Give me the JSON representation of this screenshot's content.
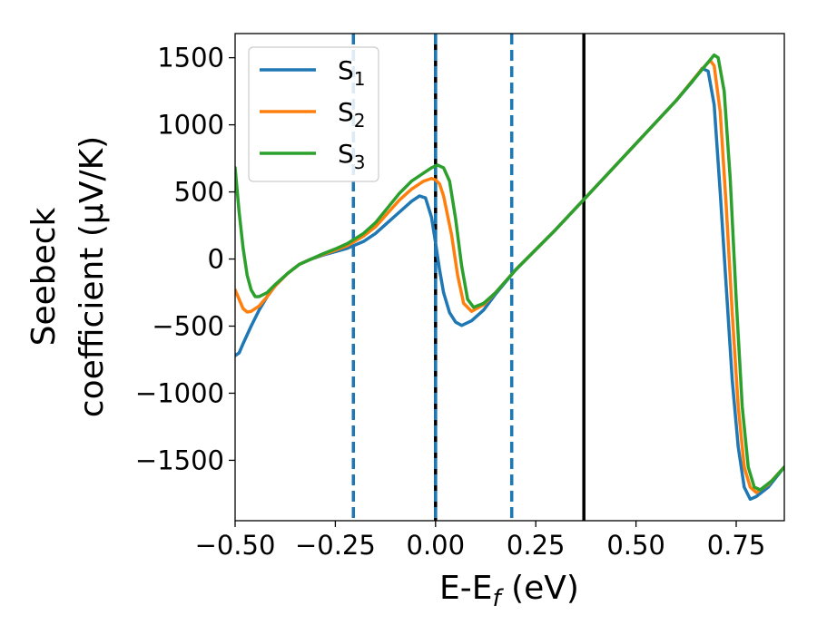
{
  "chart_data": {
    "type": "line",
    "title": "",
    "xlabel": {
      "main": "E-E",
      "sub": "f",
      "tail": " (eV)"
    },
    "ylabel": {
      "line1": "Seebeck",
      "line2": "coefficient  (μV/K)"
    },
    "xlim": [
      -0.5,
      0.87
    ],
    "ylim": [
      -1950,
      1680
    ],
    "x_ticks": [
      {
        "value": -0.5,
        "label": "−0.50"
      },
      {
        "value": -0.25,
        "label": "−0.25"
      },
      {
        "value": 0.0,
        "label": "0.00"
      },
      {
        "value": 0.25,
        "label": "0.25"
      },
      {
        "value": 0.5,
        "label": "0.50"
      },
      {
        "value": 0.75,
        "label": "0.75"
      }
    ],
    "y_ticks": [
      {
        "value": 1500,
        "label": "1500"
      },
      {
        "value": 1000,
        "label": "1000"
      },
      {
        "value": 500,
        "label": "500"
      },
      {
        "value": 0,
        "label": "0"
      },
      {
        "value": -500,
        "label": "−500"
      },
      {
        "value": -1000,
        "label": "−1000"
      },
      {
        "value": -1500,
        "label": "−1500"
      }
    ],
    "grid": false,
    "legend_position": "top-left",
    "series": [
      {
        "name": "S",
        "sub": "1",
        "color": "#1f77b4",
        "points": [
          [
            -0.5,
            -720
          ],
          [
            -0.49,
            -700
          ],
          [
            -0.48,
            -630
          ],
          [
            -0.46,
            -500
          ],
          [
            -0.44,
            -380
          ],
          [
            -0.42,
            -280
          ],
          [
            -0.4,
            -200
          ],
          [
            -0.37,
            -110
          ],
          [
            -0.34,
            -40
          ],
          [
            -0.31,
            0
          ],
          [
            -0.28,
            30
          ],
          [
            -0.25,
            55
          ],
          [
            -0.22,
            80
          ],
          [
            -0.18,
            130
          ],
          [
            -0.15,
            190
          ],
          [
            -0.12,
            270
          ],
          [
            -0.09,
            350
          ],
          [
            -0.06,
            430
          ],
          [
            -0.04,
            470
          ],
          [
            -0.025,
            455
          ],
          [
            -0.01,
            310
          ],
          [
            0.0,
            120
          ],
          [
            0.01,
            -80
          ],
          [
            0.02,
            -250
          ],
          [
            0.035,
            -400
          ],
          [
            0.05,
            -470
          ],
          [
            0.065,
            -495
          ],
          [
            0.09,
            -460
          ],
          [
            0.12,
            -380
          ],
          [
            0.15,
            -260
          ],
          [
            0.2,
            -80
          ],
          [
            0.3,
            220
          ],
          [
            0.4,
            540
          ],
          [
            0.5,
            860
          ],
          [
            0.6,
            1180
          ],
          [
            0.64,
            1320
          ],
          [
            0.665,
            1420
          ],
          [
            0.68,
            1400
          ],
          [
            0.695,
            1150
          ],
          [
            0.71,
            500
          ],
          [
            0.725,
            -200
          ],
          [
            0.74,
            -900
          ],
          [
            0.755,
            -1400
          ],
          [
            0.77,
            -1700
          ],
          [
            0.785,
            -1790
          ],
          [
            0.8,
            -1770
          ],
          [
            0.83,
            -1700
          ],
          [
            0.87,
            -1550
          ]
        ]
      },
      {
        "name": "S",
        "sub": "2",
        "color": "#ff7f0e",
        "points": [
          [
            -0.5,
            -230
          ],
          [
            -0.49,
            -300
          ],
          [
            -0.48,
            -370
          ],
          [
            -0.47,
            -395
          ],
          [
            -0.46,
            -390
          ],
          [
            -0.44,
            -350
          ],
          [
            -0.42,
            -280
          ],
          [
            -0.4,
            -200
          ],
          [
            -0.37,
            -110
          ],
          [
            -0.34,
            -40
          ],
          [
            -0.31,
            0
          ],
          [
            -0.28,
            35
          ],
          [
            -0.25,
            65
          ],
          [
            -0.22,
            100
          ],
          [
            -0.18,
            170
          ],
          [
            -0.15,
            240
          ],
          [
            -0.12,
            340
          ],
          [
            -0.09,
            440
          ],
          [
            -0.06,
            520
          ],
          [
            -0.03,
            580
          ],
          [
            -0.01,
            600
          ],
          [
            0.0,
            590
          ],
          [
            0.01,
            560
          ],
          [
            0.02,
            470
          ],
          [
            0.04,
            180
          ],
          [
            0.055,
            -120
          ],
          [
            0.07,
            -330
          ],
          [
            0.09,
            -390
          ],
          [
            0.12,
            -340
          ],
          [
            0.15,
            -250
          ],
          [
            0.2,
            -80
          ],
          [
            0.3,
            220
          ],
          [
            0.4,
            540
          ],
          [
            0.5,
            860
          ],
          [
            0.6,
            1180
          ],
          [
            0.66,
            1400
          ],
          [
            0.685,
            1480
          ],
          [
            0.695,
            1440
          ],
          [
            0.71,
            1100
          ],
          [
            0.725,
            400
          ],
          [
            0.74,
            -400
          ],
          [
            0.755,
            -1100
          ],
          [
            0.77,
            -1550
          ],
          [
            0.785,
            -1700
          ],
          [
            0.8,
            -1740
          ],
          [
            0.83,
            -1680
          ],
          [
            0.87,
            -1550
          ]
        ]
      },
      {
        "name": "S",
        "sub": "3",
        "color": "#2ca02c",
        "points": [
          [
            -0.5,
            680
          ],
          [
            -0.49,
            350
          ],
          [
            -0.48,
            80
          ],
          [
            -0.47,
            -120
          ],
          [
            -0.46,
            -230
          ],
          [
            -0.45,
            -280
          ],
          [
            -0.44,
            -280
          ],
          [
            -0.42,
            -250
          ],
          [
            -0.4,
            -190
          ],
          [
            -0.37,
            -110
          ],
          [
            -0.34,
            -40
          ],
          [
            -0.31,
            0
          ],
          [
            -0.28,
            40
          ],
          [
            -0.25,
            75
          ],
          [
            -0.22,
            115
          ],
          [
            -0.18,
            190
          ],
          [
            -0.15,
            270
          ],
          [
            -0.12,
            380
          ],
          [
            -0.09,
            490
          ],
          [
            -0.06,
            580
          ],
          [
            -0.03,
            640
          ],
          [
            -0.01,
            680
          ],
          [
            0.005,
            700
          ],
          [
            0.02,
            680
          ],
          [
            0.035,
            580
          ],
          [
            0.05,
            300
          ],
          [
            0.065,
            -50
          ],
          [
            0.08,
            -300
          ],
          [
            0.095,
            -360
          ],
          [
            0.12,
            -330
          ],
          [
            0.15,
            -250
          ],
          [
            0.2,
            -80
          ],
          [
            0.3,
            220
          ],
          [
            0.4,
            540
          ],
          [
            0.5,
            860
          ],
          [
            0.6,
            1180
          ],
          [
            0.67,
            1430
          ],
          [
            0.695,
            1520
          ],
          [
            0.705,
            1500
          ],
          [
            0.72,
            1250
          ],
          [
            0.735,
            600
          ],
          [
            0.75,
            -300
          ],
          [
            0.765,
            -1100
          ],
          [
            0.78,
            -1550
          ],
          [
            0.795,
            -1700
          ],
          [
            0.81,
            -1720
          ],
          [
            0.84,
            -1650
          ],
          [
            0.87,
            -1550
          ]
        ]
      }
    ],
    "vertical_lines": [
      {
        "x": -0.205,
        "style": "dashed",
        "color": "#1f77b4"
      },
      {
        "x": 0.0,
        "style": "solid",
        "color": "#000000"
      },
      {
        "x": 0.0,
        "style": "dashed",
        "color": "#1f77b4"
      },
      {
        "x": 0.19,
        "style": "dashed",
        "color": "#1f77b4"
      },
      {
        "x": 0.37,
        "style": "solid",
        "color": "#000000"
      }
    ]
  }
}
